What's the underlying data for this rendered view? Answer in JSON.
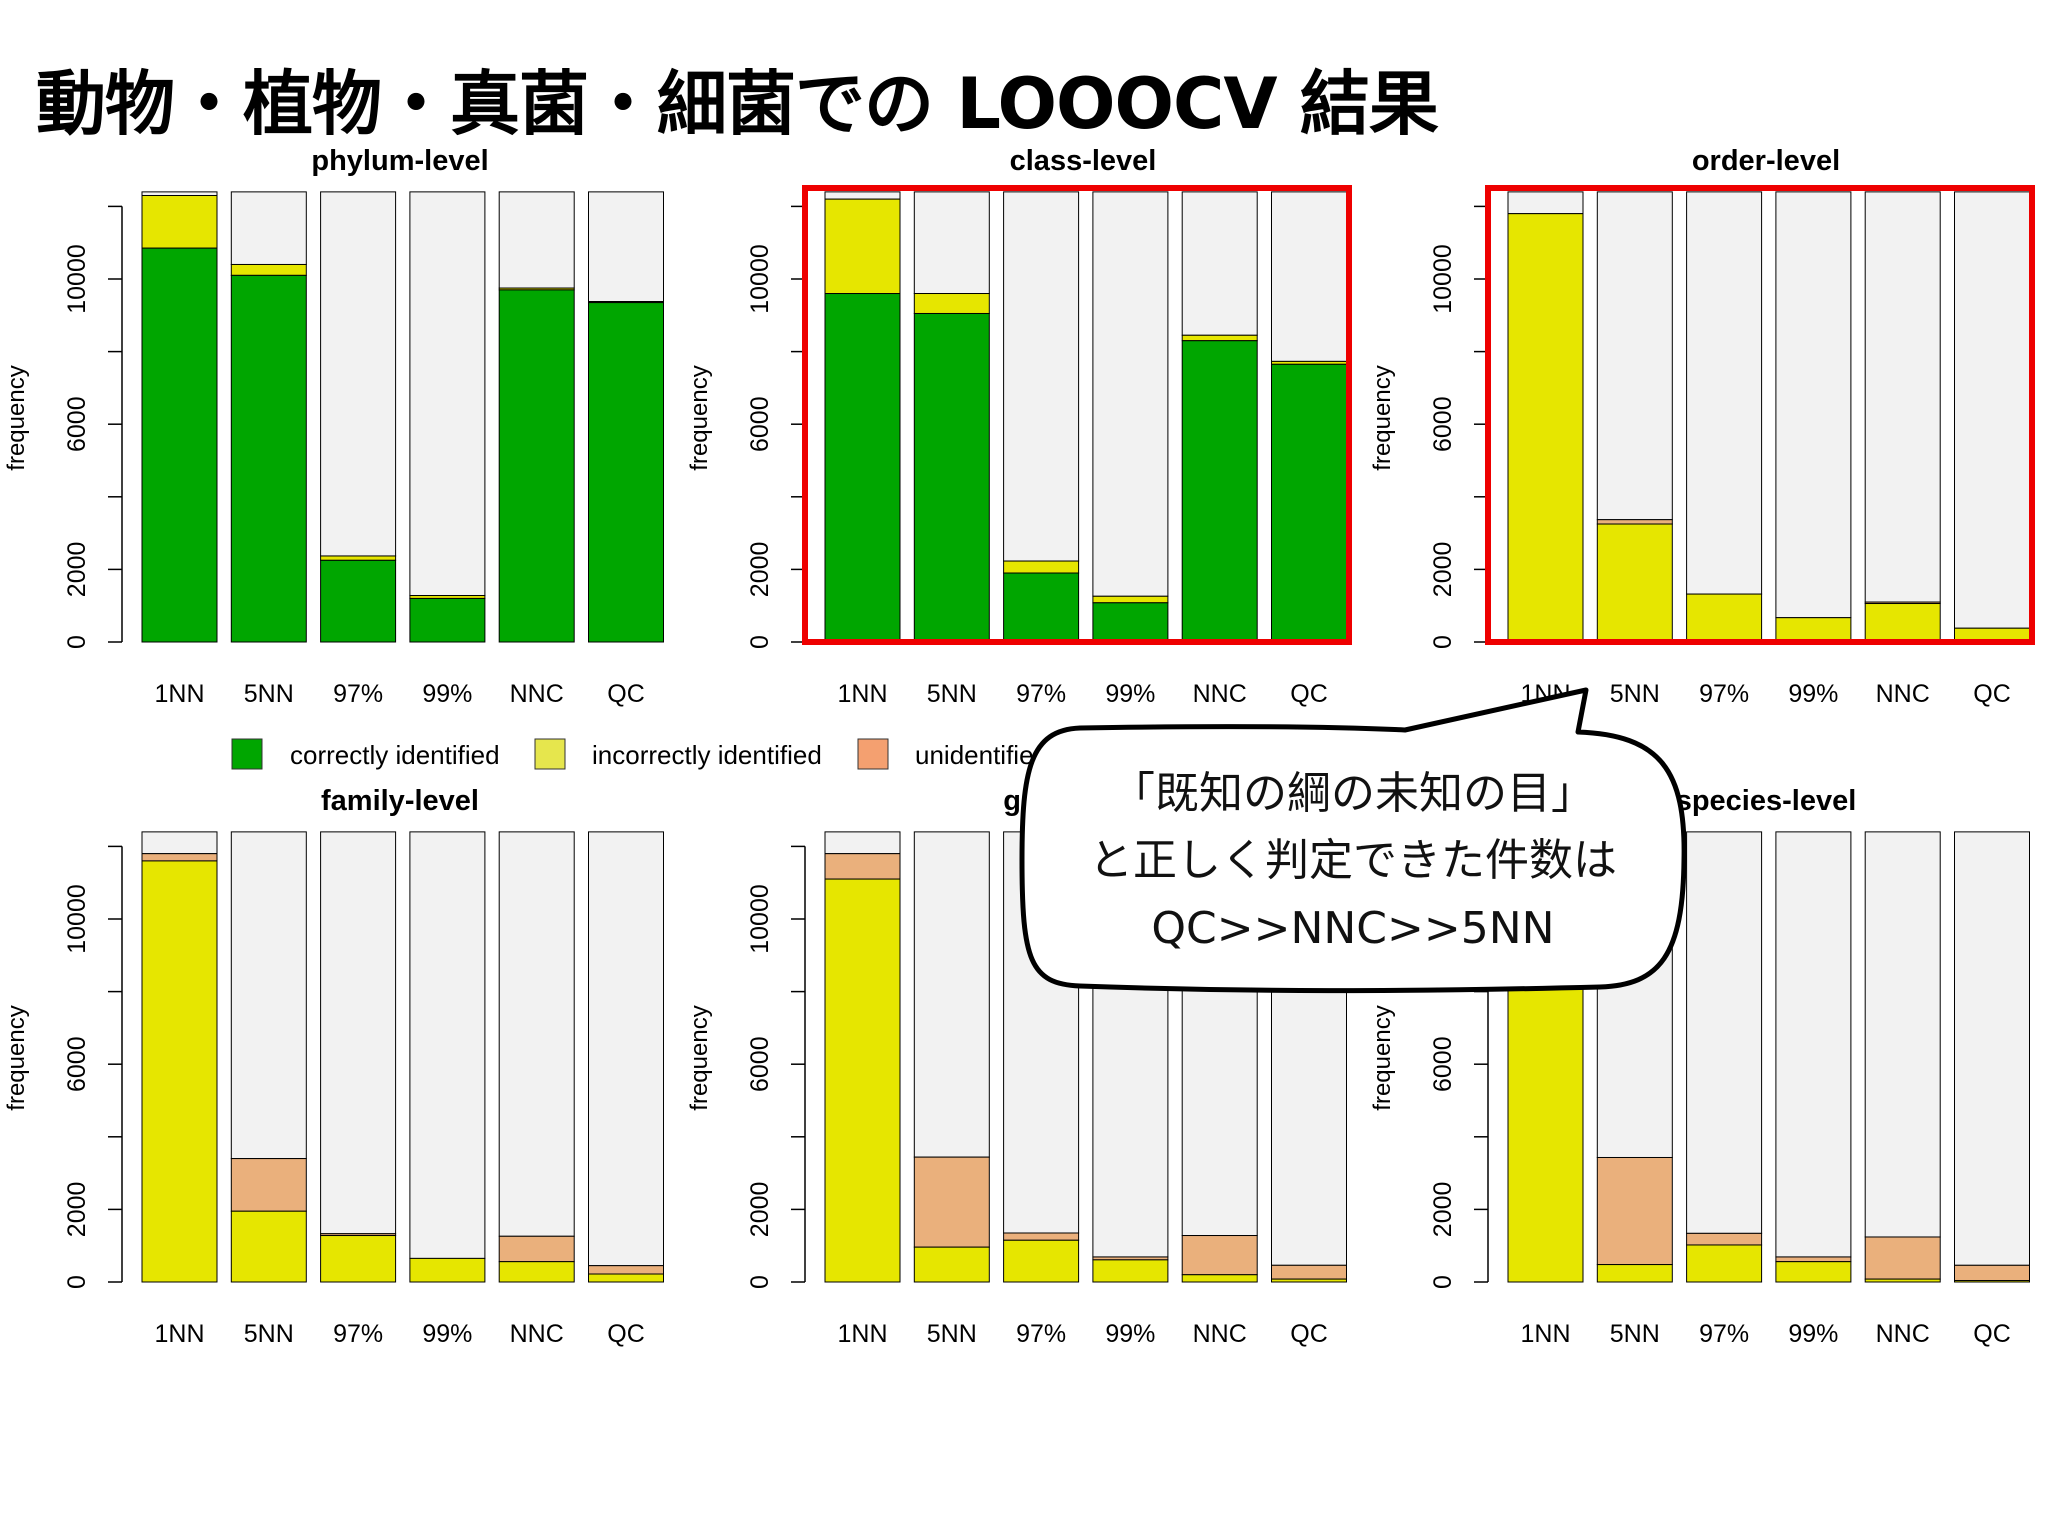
{
  "title": "動物・植物・真菌・細菌での LOOOCV 結果",
  "chart_data": {
    "type": "bar",
    "stacked": true,
    "ylabel": "frequency",
    "yticks": [
      0,
      2000,
      6000,
      10000
    ],
    "ylim": [
      0,
      12500
    ],
    "total": 12400,
    "categories": [
      "1NN",
      "5NN",
      "97%",
      "99%",
      "NNC",
      "QC"
    ],
    "series_names": [
      "correctly identified",
      "incorrectly identified",
      "unidentified"
    ],
    "colors": {
      "correct": "#00a600",
      "incorrect": "#e6e600",
      "unidentified": "#eab07c",
      "remainder": "#f2f2f2",
      "highlight": "#ee0000"
    },
    "panels": [
      {
        "title": "phylum-level",
        "highlight": false,
        "correct": [
          10850,
          10100,
          2250,
          1200,
          9700,
          9350
        ],
        "incorrect": [
          1450,
          300,
          120,
          80,
          50,
          30
        ],
        "unidentified": [
          0,
          0,
          0,
          0,
          0,
          0
        ]
      },
      {
        "title": "class-level",
        "highlight": true,
        "correct": [
          9600,
          9050,
          1900,
          1080,
          8300,
          7650
        ],
        "incorrect": [
          2600,
          550,
          330,
          180,
          150,
          80
        ],
        "unidentified": [
          0,
          0,
          0,
          0,
          0,
          0
        ]
      },
      {
        "title": "order-level",
        "highlight": true,
        "correct": [
          0,
          0,
          0,
          0,
          0,
          0
        ],
        "incorrect": [
          11800,
          3250,
          1320,
          670,
          1060,
          380
        ],
        "unidentified": [
          0,
          120,
          0,
          0,
          40,
          0
        ]
      },
      {
        "title": "family-level",
        "highlight": false,
        "correct": [
          0,
          0,
          0,
          0,
          0,
          0
        ],
        "incorrect": [
          11600,
          1950,
          1280,
          650,
          560,
          220
        ],
        "unidentified": [
          200,
          1450,
          50,
          0,
          700,
          230
        ]
      },
      {
        "title": "genus-level",
        "highlight": false,
        "correct": [
          0,
          0,
          0,
          0,
          0,
          0
        ],
        "incorrect": [
          11100,
          960,
          1150,
          610,
          200,
          80
        ],
        "unidentified": [
          700,
          2480,
          200,
          80,
          1080,
          380
        ]
      },
      {
        "title": "species-level",
        "highlight": false,
        "correct": [
          0,
          0,
          0,
          0,
          0,
          0
        ],
        "incorrect": [
          11700,
          480,
          1020,
          560,
          80,
          40
        ],
        "unidentified": [
          0,
          2950,
          320,
          130,
          1160,
          420
        ]
      }
    ]
  },
  "callout": {
    "lines": [
      "「既知の綱の未知の目」",
      "と正しく判定できた件数は",
      "QC>>NNC>>5NN"
    ]
  }
}
